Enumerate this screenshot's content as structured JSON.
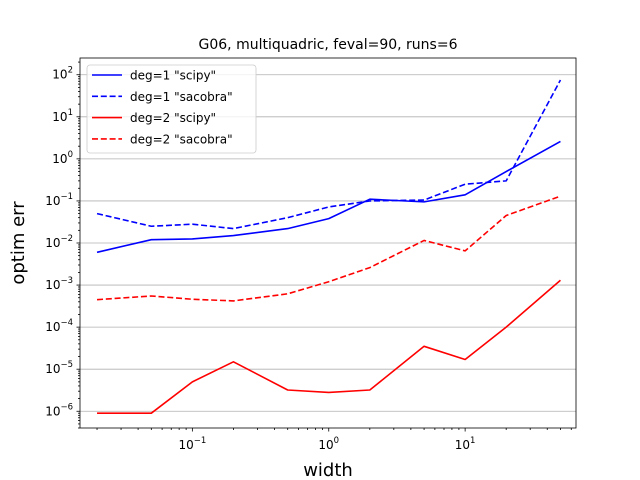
{
  "chart_data": {
    "type": "line",
    "title": "G06, multiquadric, feval=90, runs=6",
    "xlabel": "width",
    "ylabel": "optim err",
    "xscale": "log",
    "yscale": "log",
    "xlim": [
      0.015,
      65
    ],
    "ylim": [
      4e-07,
      250
    ],
    "x_ticks": [
      {
        "base": "10",
        "exp": "−1",
        "value": 0.1
      },
      {
        "base": "10",
        "exp": "0",
        "value": 1
      },
      {
        "base": "10",
        "exp": "1",
        "value": 10
      }
    ],
    "y_ticks": [
      {
        "base": "10",
        "exp": "−6",
        "value": 1e-06
      },
      {
        "base": "10",
        "exp": "−5",
        "value": 1e-05
      },
      {
        "base": "10",
        "exp": "−4",
        "value": 0.0001
      },
      {
        "base": "10",
        "exp": "−3",
        "value": 0.001
      },
      {
        "base": "10",
        "exp": "−2",
        "value": 0.01
      },
      {
        "base": "10",
        "exp": "−1",
        "value": 0.1
      },
      {
        "base": "10",
        "exp": "0",
        "value": 1
      },
      {
        "base": "10",
        "exp": "1",
        "value": 10
      },
      {
        "base": "10",
        "exp": "2",
        "value": 100
      }
    ],
    "grid": "y-major",
    "legend_position": "top-left",
    "x": [
      0.02,
      0.05,
      0.1,
      0.2,
      0.5,
      1,
      2,
      5,
      10,
      20,
      50
    ],
    "series": [
      {
        "name": "deg=1 \"scipy\"",
        "color": "#0000ff",
        "dash": "solid",
        "values": [
          0.006,
          0.012,
          0.0125,
          0.015,
          0.022,
          0.038,
          0.11,
          0.095,
          0.14,
          0.5,
          2.6
        ]
      },
      {
        "name": "deg=1 \"sacobra\"",
        "color": "#0000ff",
        "dash": "dashed",
        "values": [
          0.05,
          0.025,
          0.028,
          0.022,
          0.04,
          0.072,
          0.1,
          0.105,
          0.25,
          0.3,
          75
        ]
      },
      {
        "name": "deg=2 \"scipy\"",
        "color": "#ff0000",
        "dash": "solid",
        "values": [
          9e-07,
          9e-07,
          5e-06,
          1.5e-05,
          3.2e-06,
          2.8e-06,
          3.2e-06,
          3.5e-05,
          1.7e-05,
          0.0001,
          0.0013
        ]
      },
      {
        "name": "deg=2 \"sacobra\"",
        "color": "#ff0000",
        "dash": "dashed",
        "values": [
          0.00045,
          0.00055,
          0.00046,
          0.00042,
          0.00062,
          0.0012,
          0.0026,
          0.0115,
          0.0065,
          0.045,
          0.13
        ]
      }
    ]
  }
}
